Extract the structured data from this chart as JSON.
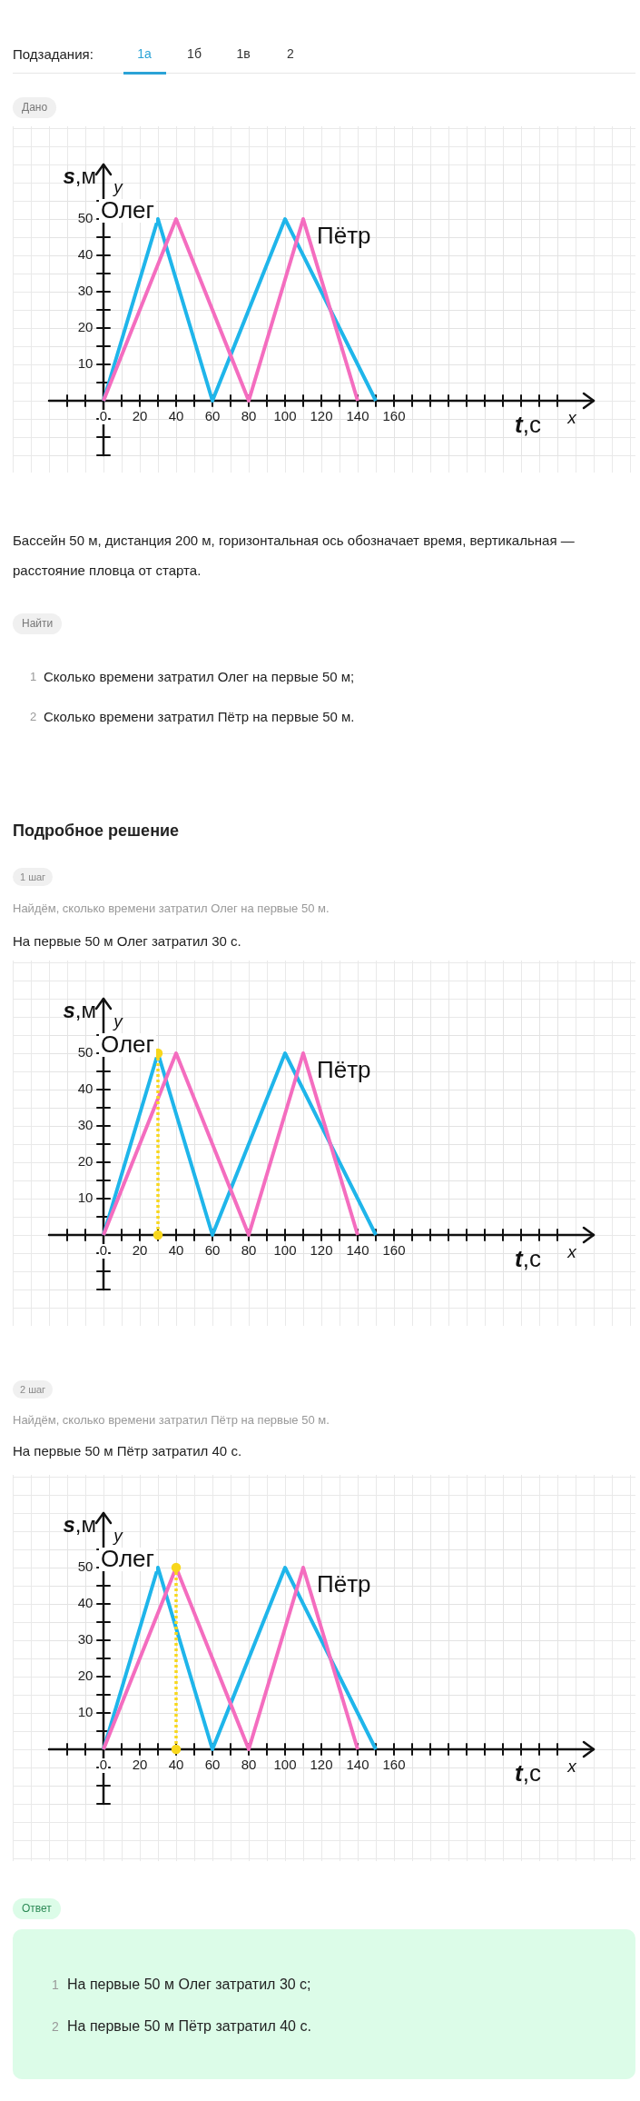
{
  "chart_data": [
    {
      "type": "other",
      "annotations": [
        "Подзадания:",
        "1а",
        "1б",
        "1в",
        "2",
        "Дано"
      ]
    },
    {
      "type": "line",
      "xlabel": "t,с",
      "ylabel": "s,м",
      "annotations": [
        "x",
        "y"
      ],
      "xlim": [
        -30,
        270
      ],
      "ylim": [
        -15,
        65
      ],
      "xticks": [
        {
          "value": -20,
          "label": null
        },
        {
          "value": -10,
          "label": null
        },
        0,
        {
          "value": 10,
          "label": null
        },
        20,
        {
          "value": 30,
          "label": null
        },
        40,
        {
          "value": 50,
          "label": null
        },
        60,
        {
          "value": 70,
          "label": null
        },
        80,
        {
          "value": 90,
          "label": null
        },
        100,
        {
          "value": 110,
          "label": null
        },
        120,
        {
          "value": 130,
          "label": null
        },
        140,
        {
          "value": 150,
          "label": null
        },
        160,
        {
          "value": 170,
          "label": null
        },
        {
          "value": 180,
          "label": null
        },
        {
          "value": 190,
          "label": null
        },
        {
          "value": 200,
          "label": null
        },
        {
          "value": 210,
          "label": null
        },
        {
          "value": 220,
          "label": null
        },
        {
          "value": 230,
          "label": null
        },
        {
          "value": 240,
          "label": null
        },
        {
          "value": 250,
          "label": null
        }
      ],
      "yticks": [
        {
          "value": -15,
          "label": null
        },
        {
          "value": -10,
          "label": null
        },
        {
          "value": -5,
          "label": null
        },
        {
          "value": 5,
          "label": null
        },
        10,
        {
          "value": 15,
          "label": null
        },
        20,
        {
          "value": 25,
          "label": null
        },
        30,
        {
          "value": 35,
          "label": null
        },
        40,
        {
          "value": 45,
          "label": null
        },
        50,
        {
          "value": 55,
          "label": null
        }
      ],
      "grid": true,
      "series": [
        {
          "name": "Олег",
          "color": "#1fb5ea",
          "x": [
            0,
            30,
            60,
            100,
            150
          ],
          "values": [
            0,
            50,
            0,
            50,
            0
          ]
        },
        {
          "name": "Пётр",
          "color": "#f46dbf",
          "x": [
            0,
            40,
            80,
            110,
            140
          ],
          "values": [
            0,
            50,
            0,
            50,
            0
          ]
        }
      ]
    },
    {
      "type": "other",
      "annotations": [
        "Бассейн 50 м, дистанция 200 м, горизонтальная ось обозначает время, вертикальная — расстояние пловца от старта.",
        "Найти",
        "1",
        "Сколько времени затратил Олег на первые 50 м;",
        "2",
        "Сколько времени затратил Пётр на первые 50 м.",
        "Подробное решение",
        "1 шаг",
        "Найдём, сколько времени затратил Олег на первые 50 м.",
        "На первые 50 м Олег затратил 30 с."
      ]
    },
    {
      "type": "line",
      "xlabel": "t,с",
      "ylabel": "s,м",
      "annotations": [
        "x",
        "y"
      ],
      "xlim": [
        -30,
        270
      ],
      "ylim": [
        -15,
        65
      ],
      "xticks": [
        {
          "value": -20,
          "label": null
        },
        {
          "value": -10,
          "label": null
        },
        0,
        {
          "value": 10,
          "label": null
        },
        20,
        {
          "value": 30,
          "label": null
        },
        40,
        {
          "value": 50,
          "label": null
        },
        60,
        {
          "value": 70,
          "label": null
        },
        80,
        {
          "value": 90,
          "label": null
        },
        100,
        {
          "value": 110,
          "label": null
        },
        120,
        {
          "value": 130,
          "label": null
        },
        140,
        {
          "value": 150,
          "label": null
        },
        160,
        {
          "value": 170,
          "label": null
        },
        {
          "value": 180,
          "label": null
        },
        {
          "value": 190,
          "label": null
        },
        {
          "value": 200,
          "label": null
        },
        {
          "value": 210,
          "label": null
        },
        {
          "value": 220,
          "label": null
        },
        {
          "value": 230,
          "label": null
        },
        {
          "value": 240,
          "label": null
        },
        {
          "value": 250,
          "label": null
        }
      ],
      "yticks": [
        {
          "value": -15,
          "label": null
        },
        {
          "value": -10,
          "label": null
        },
        {
          "value": -5,
          "label": null
        },
        {
          "value": 5,
          "label": null
        },
        10,
        {
          "value": 15,
          "label": null
        },
        20,
        {
          "value": 25,
          "label": null
        },
        30,
        {
          "value": 35,
          "label": null
        },
        40,
        {
          "value": 45,
          "label": null
        },
        50,
        {
          "value": 55,
          "label": null
        }
      ],
      "grid": true,
      "series": [
        {
          "name": "Олег",
          "color": "#1fb5ea",
          "x": [
            0,
            30,
            60,
            100,
            150
          ],
          "values": [
            0,
            50,
            0,
            50,
            0
          ]
        },
        {
          "name": "Пётр",
          "color": "#f46dbf",
          "x": [
            0,
            40,
            80,
            110,
            140
          ],
          "values": [
            0,
            50,
            0,
            50,
            0
          ]
        },
        {
          "color": "#f8d71c",
          "x": [
            30,
            30
          ],
          "values": [
            0,
            50
          ],
          "marker": "circle",
          "line_style": "dotted"
        }
      ]
    },
    {
      "type": "other",
      "annotations": [
        "2 шаг",
        "Найдём, сколько времени затратил Пётр на первые 50 м.",
        "На первые 50 м Пётр затратил 40 с."
      ]
    },
    {
      "type": "line",
      "xlabel": "t,с",
      "ylabel": "s,м",
      "annotations": [
        "x",
        "y"
      ],
      "xlim": [
        -30,
        270
      ],
      "ylim": [
        -15,
        65
      ],
      "xticks": [
        {
          "value": -20,
          "label": null
        },
        {
          "value": -10,
          "label": null
        },
        0,
        {
          "value": 10,
          "label": null
        },
        20,
        {
          "value": 30,
          "label": null
        },
        40,
        {
          "value": 50,
          "label": null
        },
        60,
        {
          "value": 70,
          "label": null
        },
        80,
        {
          "value": 90,
          "label": null
        },
        100,
        {
          "value": 110,
          "label": null
        },
        120,
        {
          "value": 130,
          "label": null
        },
        140,
        {
          "value": 150,
          "label": null
        },
        160,
        {
          "value": 170,
          "label": null
        },
        {
          "value": 180,
          "label": null
        },
        {
          "value": 190,
          "label": null
        },
        {
          "value": 200,
          "label": null
        },
        {
          "value": 210,
          "label": null
        },
        {
          "value": 220,
          "label": null
        },
        {
          "value": 230,
          "label": null
        },
        {
          "value": 240,
          "label": null
        },
        {
          "value": 250,
          "label": null
        }
      ],
      "yticks": [
        {
          "value": -15,
          "label": null
        },
        {
          "value": -10,
          "label": null
        },
        {
          "value": -5,
          "label": null
        },
        {
          "value": 5,
          "label": null
        },
        10,
        {
          "value": 15,
          "label": null
        },
        20,
        {
          "value": 25,
          "label": null
        },
        30,
        {
          "value": 35,
          "label": null
        },
        40,
        {
          "value": 45,
          "label": null
        },
        50,
        {
          "value": 55,
          "label": null
        }
      ],
      "grid": true,
      "series": [
        {
          "name": "Олег",
          "color": "#1fb5ea",
          "x": [
            0,
            30,
            60,
            100,
            150
          ],
          "values": [
            0,
            50,
            0,
            50,
            0
          ]
        },
        {
          "name": "Пётр",
          "color": "#f46dbf",
          "x": [
            0,
            40,
            80,
            110,
            140
          ],
          "values": [
            0,
            50,
            0,
            50,
            0
          ]
        },
        {
          "color": "#f8d71c",
          "x": [
            40,
            40
          ],
          "values": [
            0,
            50
          ],
          "marker": "circle",
          "line_style": "dotted"
        }
      ]
    },
    {
      "type": "other",
      "annotations": [
        "Ответ",
        "1",
        "На первые 50 м Олег затратил 30 с;",
        "2",
        "На первые 50 м Пётр затратил 40 с."
      ]
    }
  ]
}
